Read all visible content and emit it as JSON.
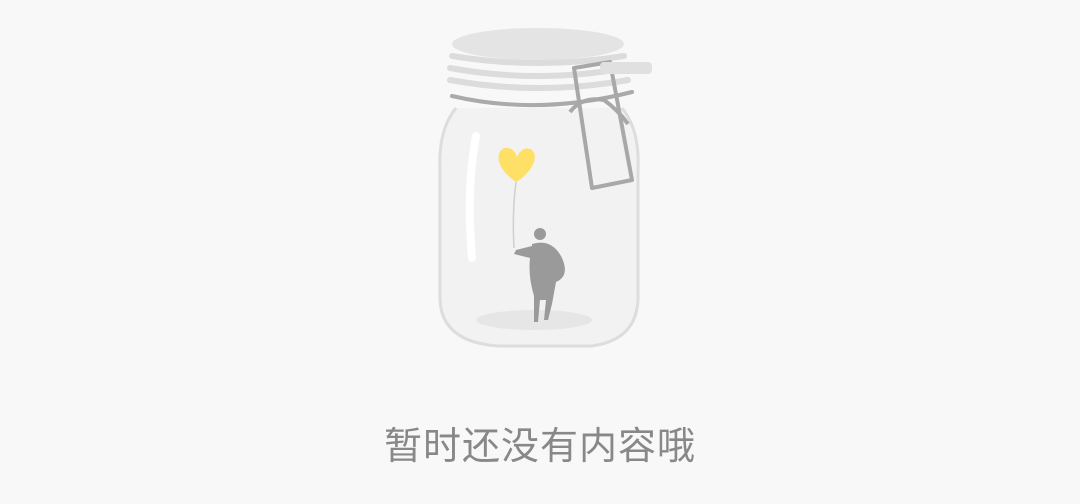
{
  "empty_state": {
    "message": "暂时还没有内容哦",
    "illustration_icon": "empty-jar-with-heart-balloon-icon"
  },
  "colors": {
    "background": "#f8f8f8",
    "text": "#888888",
    "jar_outline": "#d9d9d9",
    "lid": "#e4e4e4",
    "clasp": "#a8a8a8",
    "heart": "#ffe066",
    "figure": "#9a9a9a"
  }
}
